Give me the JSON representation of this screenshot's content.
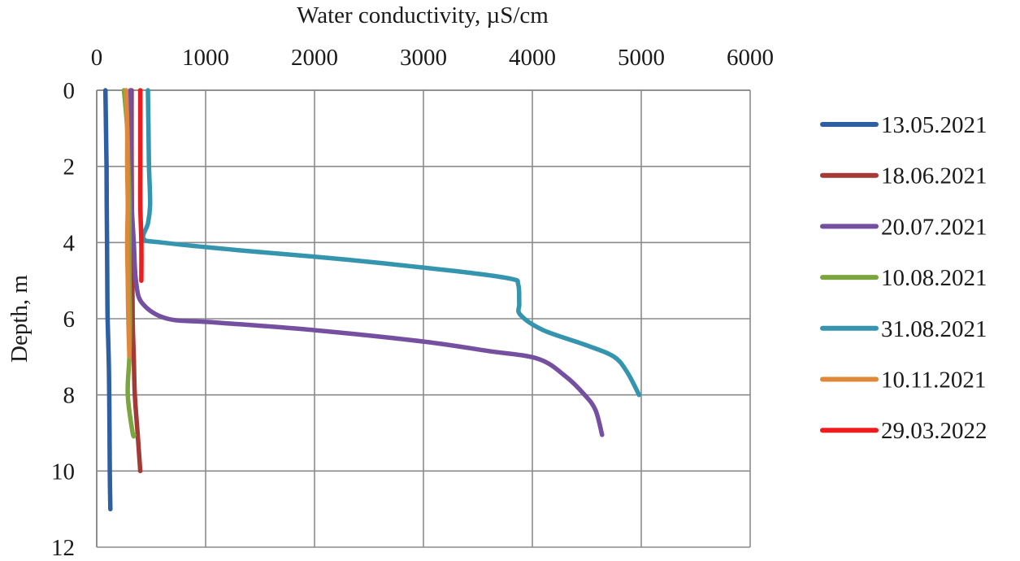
{
  "chart_data": {
    "type": "line",
    "title": "",
    "xlabel": "Water conductivity, µS/cm",
    "ylabel": "Depth, m",
    "x_axis_position": "top",
    "y_axis_inverted": true,
    "xlim": [
      0,
      6000
    ],
    "ylim": [
      0,
      12
    ],
    "xticks": [
      "0",
      "1000",
      "2000",
      "3000",
      "4000",
      "5000",
      "6000"
    ],
    "yticks": [
      "0",
      "2",
      "4",
      "6",
      "8",
      "10",
      "12"
    ],
    "grid": true,
    "legend_position": "right",
    "series": [
      {
        "name": "13.05.2021",
        "color": "#2e5fa3",
        "points": [
          [
            80,
            0
          ],
          [
            85,
            1
          ],
          [
            90,
            2
          ],
          [
            92,
            3
          ],
          [
            95,
            4
          ],
          [
            97,
            5
          ],
          [
            100,
            6
          ],
          [
            110,
            7
          ],
          [
            115,
            8
          ],
          [
            118,
            9
          ],
          [
            120,
            10
          ],
          [
            125,
            11
          ]
        ]
      },
      {
        "name": "18.06.2021",
        "color": "#a33a36",
        "points": [
          [
            320,
            0
          ],
          [
            320,
            2
          ],
          [
            325,
            4
          ],
          [
            330,
            6
          ],
          [
            340,
            7
          ],
          [
            350,
            8
          ],
          [
            375,
            9
          ],
          [
            400,
            10
          ]
        ]
      },
      {
        "name": "20.07.2021",
        "color": "#7650a0",
        "points": [
          [
            310,
            0
          ],
          [
            310,
            2
          ],
          [
            320,
            3
          ],
          [
            340,
            4
          ],
          [
            360,
            5
          ],
          [
            420,
            5.6
          ],
          [
            650,
            6
          ],
          [
            1100,
            6.1
          ],
          [
            2000,
            6.3
          ],
          [
            3000,
            6.6
          ],
          [
            3600,
            6.85
          ],
          [
            4050,
            7.05
          ],
          [
            4300,
            7.5
          ],
          [
            4480,
            8
          ],
          [
            4580,
            8.4
          ],
          [
            4640,
            9.05
          ]
        ]
      },
      {
        "name": "10.08.2021",
        "color": "#7ba53e",
        "points": [
          [
            250,
            0
          ],
          [
            280,
            1
          ],
          [
            290,
            2
          ],
          [
            300,
            3
          ],
          [
            300,
            4
          ],
          [
            300,
            5
          ],
          [
            305,
            6
          ],
          [
            300,
            7
          ],
          [
            285,
            8
          ],
          [
            330,
            9
          ],
          [
            345,
            9.05
          ]
        ]
      },
      {
        "name": "31.08.2021",
        "color": "#3595af",
        "points": [
          [
            470,
            0
          ],
          [
            475,
            1
          ],
          [
            480,
            2
          ],
          [
            490,
            3
          ],
          [
            470,
            3.5
          ],
          [
            430,
            3.9
          ],
          [
            600,
            4
          ],
          [
            1300,
            4.2
          ],
          [
            2300,
            4.45
          ],
          [
            3300,
            4.75
          ],
          [
            3800,
            4.95
          ],
          [
            3870,
            5.1
          ],
          [
            3880,
            5.6
          ],
          [
            3890,
            5.9
          ],
          [
            4100,
            6.3
          ],
          [
            4500,
            6.7
          ],
          [
            4750,
            7
          ],
          [
            4870,
            7.4
          ],
          [
            4980,
            8
          ]
        ]
      },
      {
        "name": "10.11.2021",
        "color": "#e0883a",
        "points": [
          [
            270,
            0
          ],
          [
            280,
            1
          ],
          [
            280,
            2
          ],
          [
            285,
            3
          ],
          [
            280,
            4
          ],
          [
            285,
            5
          ],
          [
            290,
            6
          ],
          [
            300,
            7
          ]
        ]
      },
      {
        "name": "29.03.2022",
        "color": "#ee1c1c",
        "points": [
          [
            400,
            0
          ],
          [
            400,
            1
          ],
          [
            400,
            2
          ],
          [
            400,
            3
          ],
          [
            410,
            4
          ],
          [
            410,
            5
          ]
        ]
      }
    ]
  }
}
